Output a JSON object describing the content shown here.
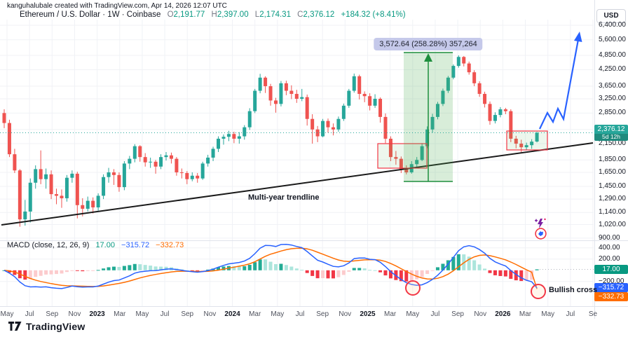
{
  "watermark": "kanguhalubale created with TradingView.com, Apr 14, 2026 12:07 UTC",
  "symbol": {
    "title": "Ethereum / U.S. Dollar",
    "sep1": "·",
    "interval": "1W",
    "sep2": "·",
    "exchange": "Coinbase",
    "o_label": "O",
    "o_value": "2,191.77",
    "h_label": "H",
    "h_value": "2,397.00",
    "l_label": "L",
    "l_value": "2,174.31",
    "c_label": "C",
    "c_value": "2,376.12",
    "change": "+184.32 (+8.41%)"
  },
  "price_axis": {
    "currency": "USD",
    "ticks": [
      {
        "label": "6,400.00",
        "price": 6400
      },
      {
        "label": "5,600.00",
        "price": 5600
      },
      {
        "label": "4,850.00",
        "price": 4850
      },
      {
        "label": "4,250.00",
        "price": 4250
      },
      {
        "label": "3,650.00",
        "price": 3650
      },
      {
        "label": "3,250.00",
        "price": 3250
      },
      {
        "label": "2,850.00",
        "price": 2850
      },
      {
        "label": "2,450.00",
        "price": 2450
      },
      {
        "label": "2,150.00",
        "price": 2150
      },
      {
        "label": "1,850.00",
        "price": 1850
      },
      {
        "label": "1,650.00",
        "price": 1650
      },
      {
        "label": "1,450.00",
        "price": 1450
      },
      {
        "label": "1,290.00",
        "price": 1290
      },
      {
        "label": "1,140.00",
        "price": 1140
      },
      {
        "label": "1,020.00",
        "price": 1020
      },
      {
        "label": "900.00",
        "price": 900
      }
    ],
    "last_price": "2,376.12",
    "countdown": "5d 12h"
  },
  "macd_panel": {
    "legend": "MACD (close, 12, 26, 9)",
    "hist_value": "17.00",
    "macd_value": "−315.72",
    "signal_value": "−332.73",
    "ticks": [
      {
        "label": "400.00",
        "v": 400
      },
      {
        "label": "200.00",
        "v": 200
      },
      {
        "label": "−200.00",
        "v": -200
      }
    ]
  },
  "time_axis": {
    "labels": [
      {
        "label": "May"
      },
      {
        "label": "Jul"
      },
      {
        "label": "Sep"
      },
      {
        "label": "Nov"
      },
      {
        "label": "2023",
        "bold": true
      },
      {
        "label": "Mar"
      },
      {
        "label": "May"
      },
      {
        "label": "Jul"
      },
      {
        "label": "Sep"
      },
      {
        "label": "Nov"
      },
      {
        "label": "2024",
        "bold": true
      },
      {
        "label": "Mar"
      },
      {
        "label": "May"
      },
      {
        "label": "Jul"
      },
      {
        "label": "Sep"
      },
      {
        "label": "Nov"
      },
      {
        "label": "2025",
        "bold": true
      },
      {
        "label": "Mar"
      },
      {
        "label": "May"
      },
      {
        "label": "Jul"
      },
      {
        "label": "Sep"
      },
      {
        "label": "Nov"
      },
      {
        "label": "2026",
        "bold": true
      },
      {
        "label": "Mar"
      },
      {
        "label": "May"
      },
      {
        "label": "Jul"
      },
      {
        "label": "Se"
      }
    ]
  },
  "annotations": {
    "measure_label": "3,572.64 (258.28%) 357,264",
    "trendline_label": "Multi-year trendline",
    "bullish_cross_label": "Bullish cross"
  },
  "logo_text": "TradingView",
  "colors": {
    "up": "#26a69a",
    "down": "#ef5350",
    "macd_line": "#2962ff",
    "signal_line": "#ff6d00",
    "hist_up": "#22ab94",
    "hist_up_fade": "#ace5dc",
    "hist_dn": "#f23645",
    "hist_dn_fade": "#fccbcd",
    "annotation_red": "#f23645",
    "projection_blue": "#2962ff",
    "measure_green": "rgba(76,175,80,0.22)",
    "measure_edge": "#1e8e3e",
    "badge_price": "#26a69a",
    "badge_macd": "#089981",
    "badge_macd_line": "#2962ff",
    "badge_signal": "#ff6d00",
    "grid": "#f0f2f6",
    "axis_border": "#e0e3eb",
    "trendline": "#1a1a1a"
  },
  "chart_data": {
    "type": "candlestick+macd",
    "symbol": "ETHUSD",
    "exchange": "Coinbase",
    "interval": "1W",
    "scale": "log",
    "x_range": [
      "May 2022",
      "Sep 2026"
    ],
    "price_axis_ticks": [
      6400,
      5600,
      4850,
      4250,
      3650,
      3250,
      2850,
      2450,
      2150,
      1850,
      1650,
      1450,
      1290,
      1140,
      1020,
      900
    ],
    "macd_axis_ticks": [
      400,
      200,
      -200
    ],
    "last_bar": {
      "open": 2191.77,
      "high": 2397.0,
      "low": 2174.31,
      "close": 2376.12,
      "change": 184.32,
      "change_pct": 8.41
    },
    "macd_params": {
      "source": "close",
      "fast": 12,
      "slow": 26,
      "signal": 9
    },
    "macd_last": {
      "hist": 17.0,
      "macd": -315.72,
      "signal": -332.73
    },
    "price_range_tool": {
      "change_abs": 3572.64,
      "change_pct": 258.28,
      "extra": "357,264"
    },
    "candles": [
      [
        2850,
        2950,
        2480,
        2600
      ],
      [
        2600,
        2680,
        1900,
        1950
      ],
      [
        1950,
        2050,
        1640,
        1680
      ],
      [
        1680,
        1700,
        1000,
        1070
      ],
      [
        1070,
        1280,
        1010,
        1150
      ],
      [
        1150,
        1560,
        1040,
        1500
      ],
      [
        1500,
        1760,
        1420,
        1700
      ],
      [
        1700,
        2020,
        1480,
        1550
      ],
      [
        1550,
        1710,
        1420,
        1620
      ],
      [
        1620,
        1680,
        1290,
        1350
      ],
      [
        1350,
        1420,
        1230,
        1330
      ],
      [
        1330,
        1410,
        1190,
        1300
      ],
      [
        1300,
        1610,
        1260,
        1570
      ],
      [
        1570,
        1680,
        1500,
        1630
      ],
      [
        1630,
        1660,
        1080,
        1220
      ],
      [
        1220,
        1300,
        1100,
        1180
      ],
      [
        1180,
        1320,
        1150,
        1270
      ],
      [
        1270,
        1310,
        1130,
        1195
      ],
      [
        1195,
        1360,
        1160,
        1330
      ],
      [
        1330,
        1620,
        1290,
        1580
      ],
      [
        1580,
        1720,
        1500,
        1650
      ],
      [
        1650,
        1700,
        1470,
        1610
      ],
      [
        1610,
        1650,
        1380,
        1440
      ],
      [
        1440,
        1830,
        1400,
        1790
      ],
      [
        1790,
        1920,
        1700,
        1870
      ],
      [
        1870,
        2140,
        1810,
        2100
      ],
      [
        2100,
        2120,
        1820,
        1900
      ],
      [
        1900,
        1970,
        1740,
        1810
      ],
      [
        1810,
        1890,
        1720,
        1820
      ],
      [
        1820,
        1850,
        1630,
        1740
      ],
      [
        1740,
        1950,
        1700,
        1900
      ],
      [
        1900,
        1990,
        1840,
        1930
      ],
      [
        1930,
        1980,
        1790,
        1870
      ],
      [
        1870,
        1900,
        1600,
        1650
      ],
      [
        1650,
        1710,
        1560,
        1640
      ],
      [
        1640,
        1670,
        1480,
        1550
      ],
      [
        1550,
        1650,
        1520,
        1600
      ],
      [
        1600,
        1640,
        1500,
        1560
      ],
      [
        1560,
        1820,
        1540,
        1790
      ],
      [
        1790,
        1940,
        1740,
        1890
      ],
      [
        1890,
        2090,
        1830,
        2050
      ],
      [
        2050,
        2300,
        1990,
        2250
      ],
      [
        2250,
        2340,
        2130,
        2290
      ],
      [
        2290,
        2420,
        2200,
        2350
      ],
      [
        2350,
        2400,
        2160,
        2250
      ],
      [
        2250,
        2390,
        2150,
        2300
      ],
      [
        2300,
        2550,
        2230,
        2500
      ],
      [
        2500,
        2980,
        2440,
        2900
      ],
      [
        2900,
        3560,
        2850,
        3500
      ],
      [
        3500,
        4090,
        3420,
        3950
      ],
      [
        3950,
        4000,
        3430,
        3650
      ],
      [
        3650,
        3730,
        3050,
        3200
      ],
      [
        3200,
        3280,
        2860,
        3100
      ],
      [
        3100,
        3830,
        3030,
        3750
      ],
      [
        3750,
        3840,
        3360,
        3500
      ],
      [
        3500,
        3680,
        3240,
        3400
      ],
      [
        3400,
        3530,
        3130,
        3250
      ],
      [
        3250,
        3560,
        3180,
        3300
      ],
      [
        3300,
        3380,
        2540,
        2700
      ],
      [
        2700,
        2820,
        2150,
        2450
      ],
      [
        2450,
        2530,
        2180,
        2300
      ],
      [
        2300,
        2700,
        2280,
        2650
      ],
      [
        2650,
        2710,
        2380,
        2500
      ],
      [
        2500,
        2590,
        2320,
        2450
      ],
      [
        2450,
        2760,
        2400,
        2700
      ],
      [
        2700,
        3110,
        2650,
        3050
      ],
      [
        3050,
        3560,
        2990,
        3500
      ],
      [
        3500,
        4100,
        3440,
        4000
      ],
      [
        4000,
        4060,
        3230,
        3400
      ],
      [
        3400,
        3480,
        3150,
        3330
      ],
      [
        3330,
        3420,
        2920,
        3050
      ],
      [
        3050,
        3390,
        2990,
        3250
      ],
      [
        3250,
        3290,
        2610,
        2750
      ],
      [
        2750,
        2840,
        2160,
        2250
      ],
      [
        2250,
        2300,
        1830,
        1900
      ],
      [
        1900,
        2010,
        1770,
        1870
      ],
      [
        1870,
        1910,
        1640,
        1700
      ],
      [
        1700,
        1760,
        1620,
        1650
      ],
      [
        1650,
        1830,
        1630,
        1780
      ],
      [
        1780,
        1900,
        1720,
        1850
      ],
      [
        1850,
        2160,
        1830,
        2100
      ],
      [
        2100,
        2520,
        2060,
        2450
      ],
      [
        2450,
        2830,
        2380,
        2750
      ],
      [
        2750,
        3160,
        2690,
        3100
      ],
      [
        3100,
        3570,
        3040,
        3500
      ],
      [
        3500,
        4010,
        3430,
        3950
      ],
      [
        3950,
        4460,
        3890,
        4400
      ],
      [
        4400,
        4850,
        4330,
        4780
      ],
      [
        4780,
        4820,
        4380,
        4500
      ],
      [
        4500,
        4580,
        4060,
        4150
      ],
      [
        4150,
        4230,
        3650,
        3750
      ],
      [
        3750,
        3820,
        3310,
        3400
      ],
      [
        3400,
        3470,
        3000,
        3100
      ],
      [
        3100,
        3170,
        2560,
        2650
      ],
      [
        2650,
        2870,
        2590,
        2800
      ],
      [
        2800,
        3010,
        2740,
        2950
      ],
      [
        2950,
        2990,
        2820,
        2900
      ],
      [
        2900,
        2950,
        2180,
        2250
      ],
      [
        2250,
        2310,
        2060,
        2150
      ],
      [
        2150,
        2230,
        1990,
        2080
      ],
      [
        2080,
        2170,
        2020,
        2120
      ],
      [
        2120,
        2240,
        2050,
        2190
      ],
      [
        2191.77,
        2397,
        2174.31,
        2376.12
      ]
    ]
  }
}
